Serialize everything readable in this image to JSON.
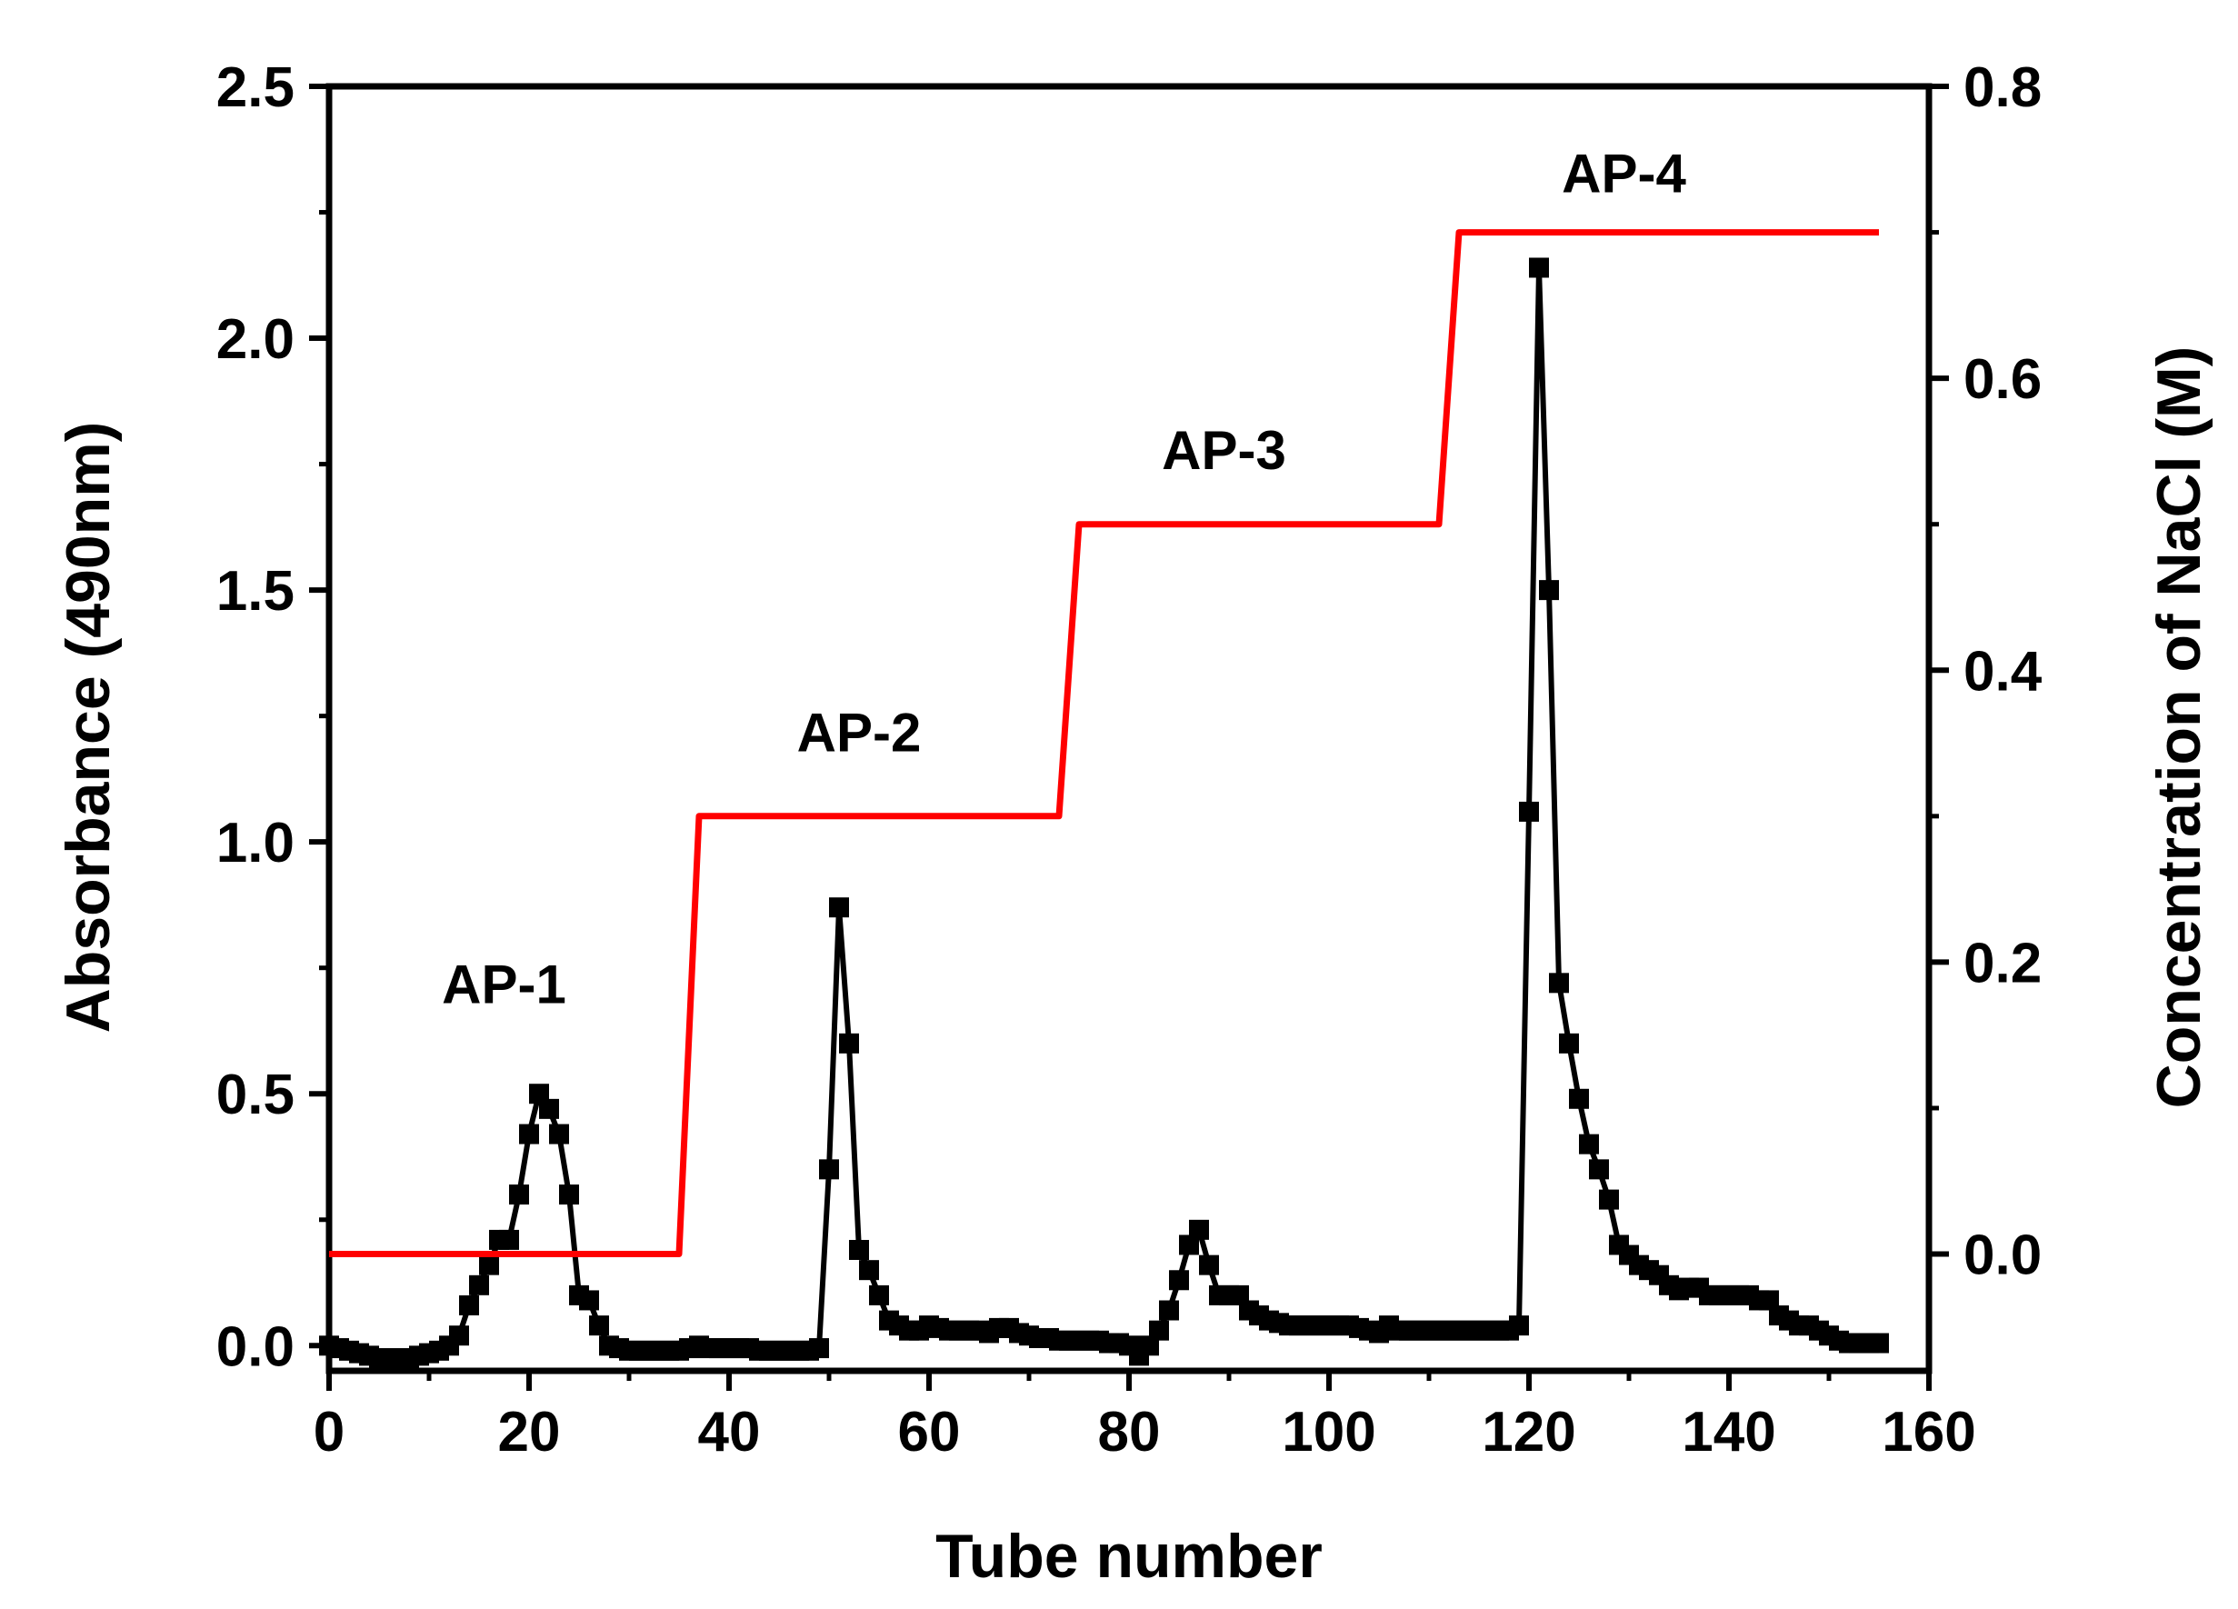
{
  "chart_data": {
    "type": "line",
    "xlabel": "Tube number",
    "ylabel": "Absorbance (490nm)",
    "y2label": "Concentration of NaCl (M)",
    "xlim": [
      0,
      160
    ],
    "ylim": [
      -0.05,
      2.5
    ],
    "y2lim": [
      -0.08,
      0.8
    ],
    "xticks": [
      "0",
      "20",
      "40",
      "60",
      "80",
      "100",
      "120",
      "140",
      "160"
    ],
    "yticks": [
      "0.0",
      "0.5",
      "1.0",
      "1.5",
      "2.0",
      "2.5"
    ],
    "y2ticks": [
      "0.0",
      "0.2",
      "0.4",
      "0.6",
      "0.8"
    ],
    "grid": false,
    "series": [
      {
        "axis": "left",
        "color": "#000000",
        "marker": "square",
        "x": [
          0,
          1,
          2,
          3,
          4,
          5,
          6,
          7,
          8,
          9,
          10,
          11,
          12,
          13,
          14,
          15,
          16,
          17,
          18,
          19,
          20,
          21,
          22,
          23,
          24,
          25,
          26,
          27,
          28,
          29,
          30,
          31,
          32,
          33,
          34,
          35,
          36,
          37,
          38,
          39,
          40,
          41,
          42,
          43,
          44,
          45,
          46,
          47,
          48,
          49,
          50,
          51,
          52,
          53,
          54,
          55,
          56,
          57,
          58,
          59,
          60,
          61,
          62,
          63,
          64,
          65,
          66,
          67,
          68,
          69,
          70,
          71,
          72,
          73,
          74,
          75,
          76,
          77,
          78,
          79,
          80,
          81,
          82,
          83,
          84,
          85,
          86,
          87,
          88,
          89,
          90,
          91,
          92,
          93,
          94,
          95,
          96,
          97,
          98,
          99,
          100,
          101,
          102,
          103,
          104,
          105,
          106,
          107,
          108,
          109,
          110,
          111,
          112,
          113,
          114,
          115,
          116,
          117,
          118,
          119,
          120,
          121,
          122,
          123,
          124,
          125,
          126,
          127,
          128,
          129,
          130,
          131,
          132,
          133,
          134,
          135,
          136,
          137,
          138,
          139,
          140,
          141,
          142,
          143,
          144,
          145,
          146,
          147,
          148,
          149,
          150,
          151,
          152,
          153,
          154,
          155
        ],
        "y": [
          0.0,
          -0.005,
          -0.01,
          -0.015,
          -0.02,
          -0.025,
          -0.025,
          -0.025,
          -0.025,
          -0.02,
          -0.015,
          -0.01,
          0.0,
          0.02,
          0.08,
          0.12,
          0.16,
          0.21,
          0.21,
          0.3,
          0.42,
          0.5,
          0.47,
          0.42,
          0.3,
          0.1,
          0.09,
          0.04,
          0.0,
          -0.005,
          -0.01,
          -0.01,
          -0.01,
          -0.01,
          -0.01,
          -0.01,
          -0.005,
          0.0,
          -0.005,
          -0.005,
          -0.005,
          -0.005,
          -0.005,
          -0.01,
          -0.01,
          -0.01,
          -0.01,
          -0.01,
          -0.01,
          -0.005,
          0.35,
          0.87,
          0.6,
          0.19,
          0.15,
          0.1,
          0.05,
          0.04,
          0.03,
          0.03,
          0.04,
          0.035,
          0.03,
          0.03,
          0.03,
          0.03,
          0.025,
          0.035,
          0.035,
          0.025,
          0.02,
          0.015,
          0.015,
          0.01,
          0.01,
          0.01,
          0.01,
          0.01,
          0.005,
          0.005,
          0.0,
          -0.02,
          0.0,
          0.03,
          0.07,
          0.13,
          0.2,
          0.23,
          0.16,
          0.1,
          0.1,
          0.1,
          0.07,
          0.06,
          0.05,
          0.045,
          0.04,
          0.04,
          0.04,
          0.04,
          0.04,
          0.04,
          0.04,
          0.035,
          0.03,
          0.025,
          0.04,
          0.03,
          0.03,
          0.03,
          0.03,
          0.03,
          0.03,
          0.03,
          0.03,
          0.03,
          0.03,
          0.03,
          0.03,
          0.04,
          1.06,
          2.14,
          1.5,
          0.72,
          0.6,
          0.49,
          0.4,
          0.35,
          0.29,
          0.2,
          0.18,
          0.16,
          0.15,
          0.14,
          0.12,
          0.11,
          0.115,
          0.115,
          0.1,
          0.1,
          0.1,
          0.1,
          0.1,
          0.09,
          0.09,
          0.06,
          0.05,
          0.04,
          0.04,
          0.03,
          0.02,
          0.01,
          0.005,
          0.005,
          0.005,
          0.005
        ]
      },
      {
        "axis": "right",
        "color": "#ff0000",
        "marker": "none",
        "x": [
          0,
          35,
          37,
          73,
          75,
          111,
          113,
          155
        ],
        "y": [
          0.0,
          0.0,
          0.3,
          0.3,
          0.5,
          0.5,
          0.7,
          0.7
        ]
      }
    ],
    "annotations": [
      {
        "text": "AP-1",
        "x": 17.5,
        "y": 0.68
      },
      {
        "text": "AP-2",
        "x": 53,
        "y": 1.18
      },
      {
        "text": "AP-3",
        "x": 89.5,
        "y": 1.74
      },
      {
        "text": "AP-4",
        "x": 129.5,
        "y": 2.29
      }
    ]
  }
}
